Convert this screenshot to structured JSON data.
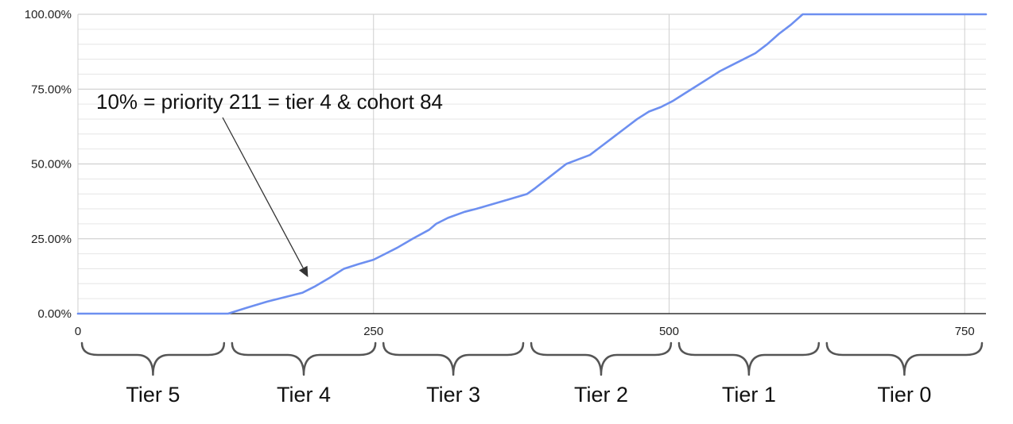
{
  "chart_data": {
    "type": "line",
    "xlim": [
      0,
      768
    ],
    "ylim": [
      0,
      100
    ],
    "x_ticks": [
      0,
      250,
      500,
      750
    ],
    "x_tick_labels": [
      "0",
      "250",
      "500",
      "750"
    ],
    "y_ticks": [
      0,
      25,
      50,
      75,
      100
    ],
    "y_tick_labels": [
      "0.00%",
      "25.00%",
      "50.00%",
      "75.00%",
      "100.00%"
    ],
    "grid": true,
    "series": [
      {
        "color": "#6d8ff0",
        "x": [
          0,
          127,
          143,
          160,
          175,
          190,
          200,
          213,
          225,
          237,
          250,
          260,
          270,
          283,
          297,
          303,
          313,
          327,
          337,
          350,
          363,
          380,
          387,
          400,
          413,
          423,
          433,
          443,
          453,
          463,
          473,
          483,
          493,
          503,
          513,
          523,
          533,
          543,
          553,
          563,
          573,
          583,
          593,
          603,
          613,
          623,
          633,
          643,
          655,
          768
        ],
        "y": [
          0,
          0,
          2,
          4,
          5.5,
          7,
          9,
          12,
          15,
          16.5,
          18,
          20,
          22,
          25,
          28,
          30,
          32,
          34,
          35,
          36.5,
          38,
          40,
          42,
          46,
          50,
          51.5,
          53,
          56,
          59,
          62,
          65,
          67.5,
          69,
          71,
          73.5,
          76,
          78.5,
          81,
          83,
          85,
          87,
          90,
          93.5,
          96.5,
          100,
          100,
          100,
          100,
          100,
          100
        ]
      }
    ],
    "annotation": {
      "text": "10% = priority 211 = tier 4 & cohort 84",
      "target_x": 200,
      "target_y": 9
    },
    "tiers": [
      {
        "label": "Tier 5",
        "x0": 0,
        "x1": 127
      },
      {
        "label": "Tier 4",
        "x0": 127,
        "x1": 255
      },
      {
        "label": "Tier 3",
        "x0": 255,
        "x1": 380
      },
      {
        "label": "Tier 2",
        "x0": 380,
        "x1": 505
      },
      {
        "label": "Tier 1",
        "x0": 505,
        "x1": 630
      },
      {
        "label": "Tier 0",
        "x0": 630,
        "x1": 768
      }
    ]
  }
}
